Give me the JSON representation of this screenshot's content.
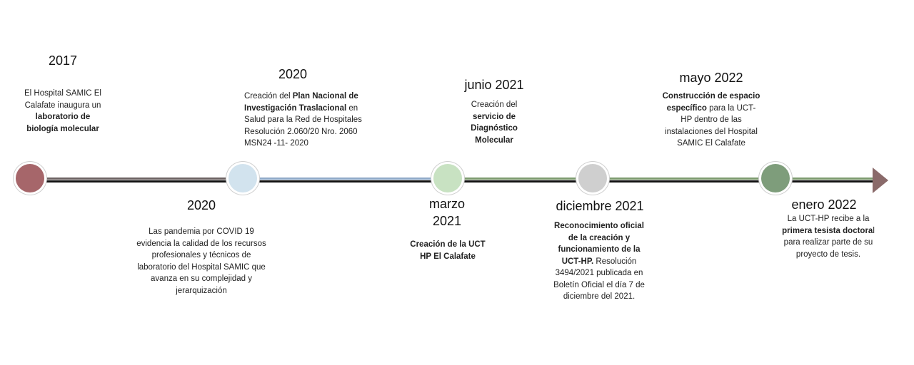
{
  "colors": {
    "node1": "#a6666a",
    "node2": "#d2e3ee",
    "node3": "#c8e2c2",
    "node4": "#cfcfcf",
    "node5": "#7e9d7b",
    "arrow": "#8a6a6a",
    "seg1": "#6c6262",
    "seg2": "#8fa9c8",
    "seg3": "#7d9b6f"
  },
  "events": {
    "e2017": {
      "year": "2017",
      "pre": "El Hospital SAMIC El Calafate inaugura un ",
      "bold": "laboratorio de biología molecular",
      "post": ""
    },
    "e2020a": {
      "year": "2020",
      "pre": "Creación del ",
      "bold": "Plan Nacional de Investigación Traslacional",
      "post": " en Salud para la Red de Hospitales Resolución 2.060/20 Nro. 2060 MSN24 -11- 2020"
    },
    "e2020b": {
      "year": "2020",
      "pre": "Las pandemia por COVID 19 evidencia la calidad de los recursos profesionales y técnicos de laboratorio del Hospital SAMIC que avanza en su complejidad y jerarquización",
      "bold": "",
      "post": ""
    },
    "e2021jun": {
      "year": "junio 2021",
      "pre": "Creación del ",
      "bold": "servicio de Diagnóstico Molecular",
      "post": ""
    },
    "e2021mar": {
      "year_line1": "marzo",
      "year_line2": "2021",
      "pre": "",
      "bold": "Creación de la UCT HP El Calafate",
      "post": ""
    },
    "e2021dic": {
      "year": "diciembre 2021",
      "pre": "",
      "bold": "Reconocimiento oficial de la creación y funcionamiento de la UCT-HP.",
      "post": " Resolución 3494/2021 publicada en Boletín Oficial el día 7 de diciembre del 2021."
    },
    "e2022may": {
      "year": "mayo 2022",
      "pre": "",
      "bold": "Construcción de espacio específico",
      "post": " para la UCT- HP dentro de las instalaciones del Hospital SAMIC El Calafate"
    },
    "e2022ene": {
      "year": "enero 2022",
      "pre": "La UCT-HP recibe a la ",
      "bold": "primera tesista doctora",
      "post": "l para realizar parte de su proyecto de tesis."
    }
  }
}
